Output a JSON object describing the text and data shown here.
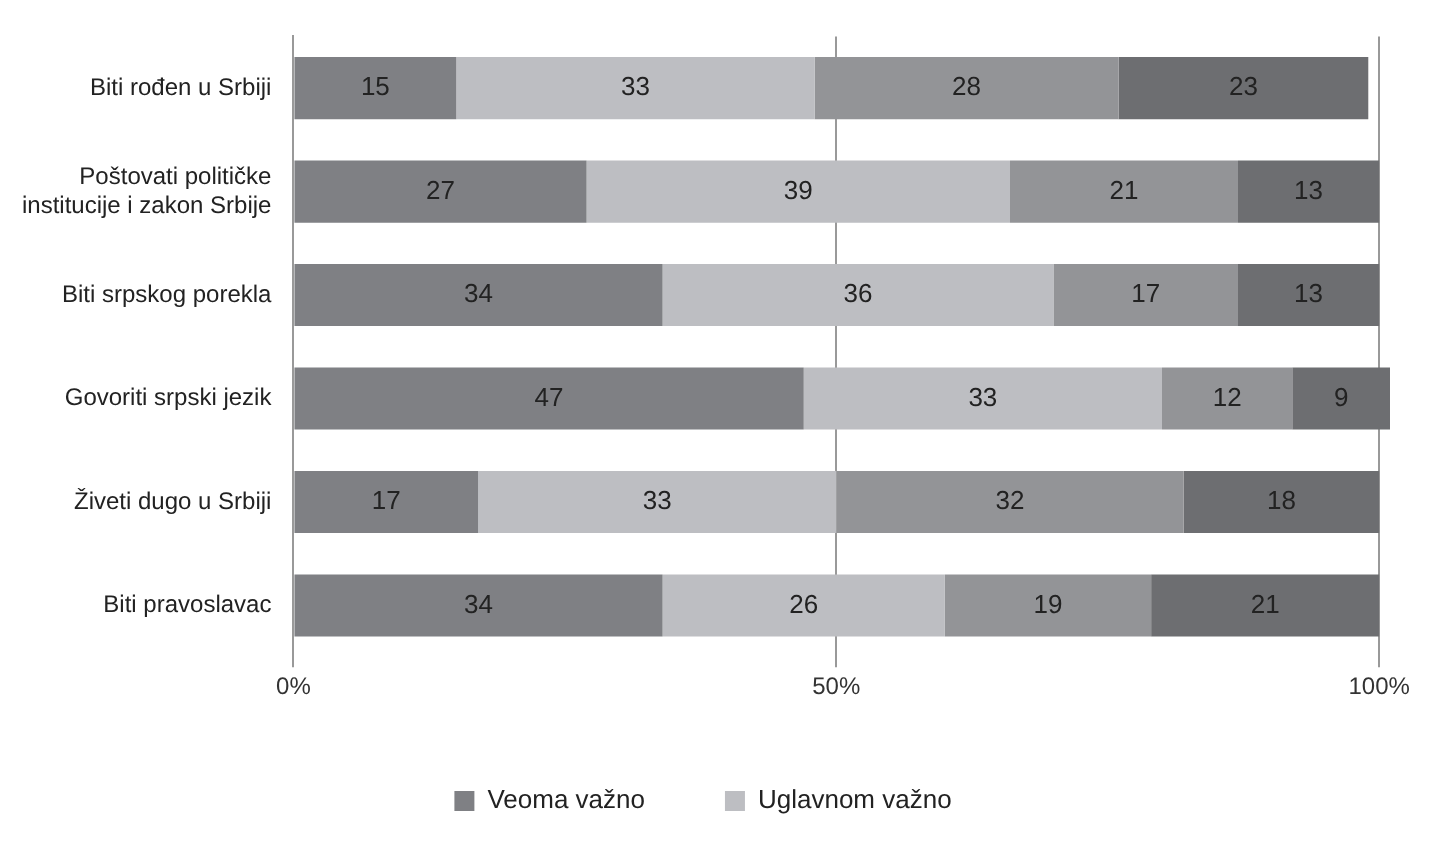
{
  "chart_data": {
    "type": "bar",
    "orientation": "horizontal",
    "stacked": true,
    "categories": [
      "Biti rođen u Srbiji",
      "Poštovati političke institucije i zakon Srbije",
      "Biti srpskog porekla",
      "Govoriti srpski jezik",
      "Živeti dugo u Srbiji",
      "Biti pravoslavac"
    ],
    "series": [
      {
        "name": "Veoma važno",
        "color": "#7f8084",
        "values": [
          15,
          27,
          34,
          47,
          17,
          34
        ]
      },
      {
        "name": "Uglavnom važno",
        "color": "#bdbec2",
        "values": [
          33,
          39,
          36,
          33,
          33,
          26
        ]
      },
      {
        "color": "#939497",
        "values": [
          28,
          21,
          17,
          12,
          32,
          19
        ]
      },
      {
        "color": "#6d6e71",
        "values": [
          23,
          13,
          13,
          9,
          18,
          21
        ]
      }
    ],
    "xlim": [
      0,
      101
    ],
    "xticks": [
      {
        "value": 0,
        "label": "0%"
      },
      {
        "value": 50,
        "label": "50%"
      },
      {
        "value": 100,
        "label": "100%"
      }
    ],
    "grid": "x",
    "legend": "bottom",
    "data_labels": true
  }
}
